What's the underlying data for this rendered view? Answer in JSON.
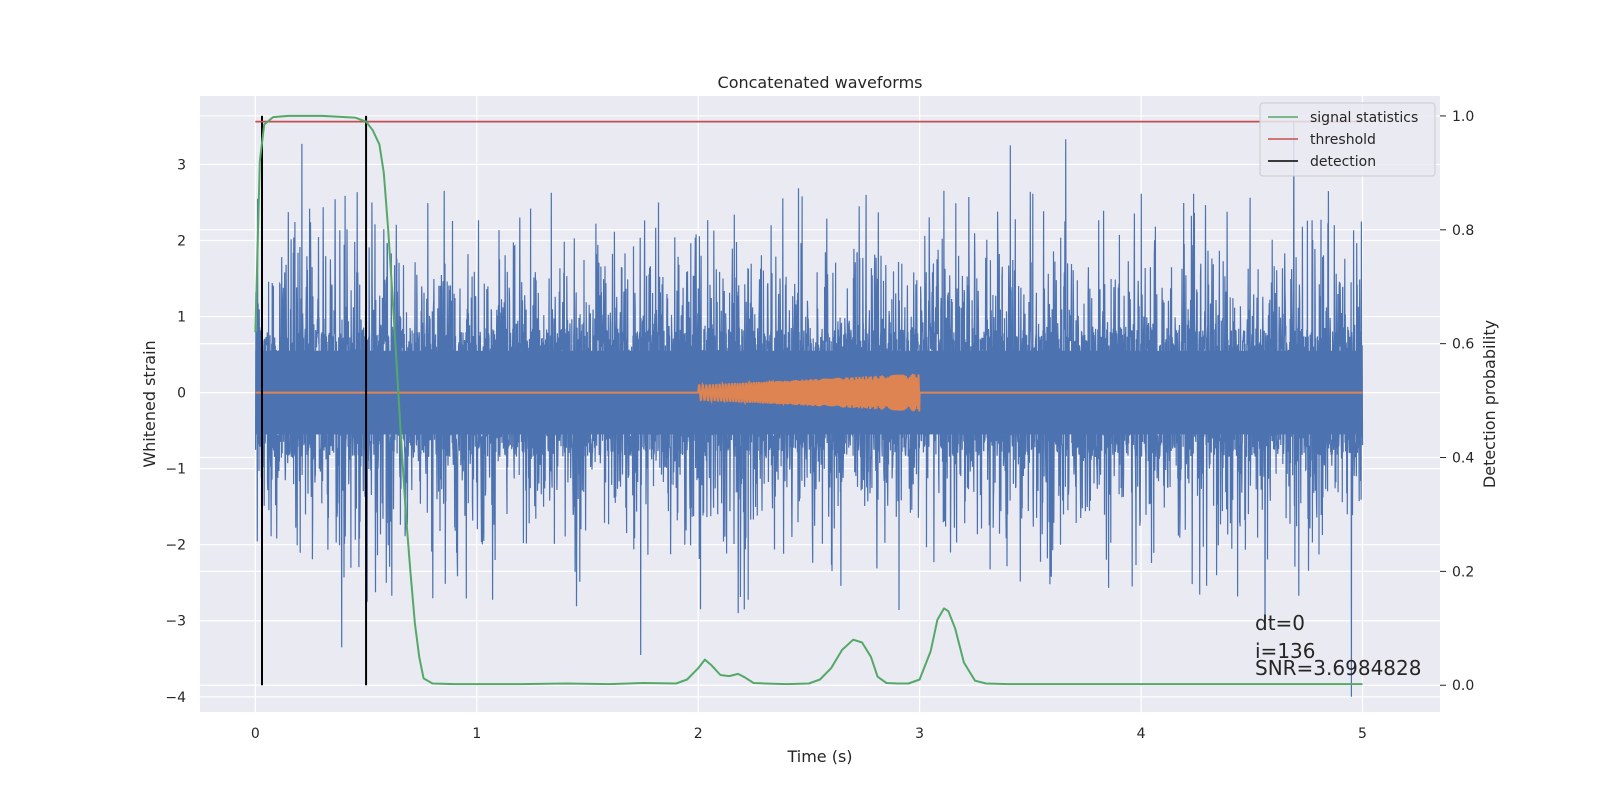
{
  "chart_data": {
    "type": "line",
    "title": "Concatenated waveforms",
    "xlabel": "Time (s)",
    "ylabel": "Whitened strain",
    "y2label": "Detection probability",
    "xlim": [
      -0.25,
      5.35
    ],
    "ylim": [
      -4.2,
      3.9
    ],
    "y2lim": [
      -0.047,
      1.035
    ],
    "x_ticks": [
      0,
      1,
      2,
      3,
      4,
      5
    ],
    "y_ticks": [
      -4,
      -3,
      -2,
      -1,
      0,
      1,
      2,
      3
    ],
    "y2_ticks": [
      0.0,
      0.2,
      0.4,
      0.6,
      0.8,
      1.0
    ],
    "x_tick_labels": [
      "0",
      "1",
      "2",
      "3",
      "4",
      "5"
    ],
    "y_tick_labels": [
      "−4",
      "−3",
      "−2",
      "−1",
      "0",
      "1",
      "2",
      "3"
    ],
    "y2_tick_labels": [
      "0.0",
      "0.2",
      "0.4",
      "0.6",
      "0.8",
      "1.0"
    ],
    "grid": true,
    "legend_position": "top-right",
    "colors": {
      "strain": "#4c72b0",
      "injected": "#dd8452",
      "signal_statistics": "#55a868",
      "threshold": "#c44e52",
      "detection": "#000000",
      "background": "#eaeaf2",
      "grid": "#ffffff"
    },
    "series": [
      {
        "name": "signal statistics",
        "axis": "right",
        "x": [
          0.0,
          0.02,
          0.04,
          0.08,
          0.15,
          0.3,
          0.45,
          0.5,
          0.53,
          0.56,
          0.58,
          0.6,
          0.62,
          0.64,
          0.66,
          0.68,
          0.7,
          0.72,
          0.74,
          0.76,
          0.8,
          0.9,
          1.0,
          1.2,
          1.4,
          1.6,
          1.75,
          1.9,
          1.95,
          2.0,
          2.03,
          2.06,
          2.1,
          2.14,
          2.18,
          2.21,
          2.25,
          2.3,
          2.4,
          2.5,
          2.55,
          2.6,
          2.65,
          2.7,
          2.74,
          2.78,
          2.81,
          2.85,
          2.9,
          2.95,
          3.0,
          3.05,
          3.08,
          3.11,
          3.13,
          3.16,
          3.2,
          3.25,
          3.3,
          3.4,
          3.6,
          3.8,
          4.0,
          4.5,
          5.0
        ],
        "values": [
          0.62,
          0.92,
          0.985,
          0.998,
          1.0,
          1.0,
          0.997,
          0.99,
          0.975,
          0.95,
          0.9,
          0.8,
          0.68,
          0.55,
          0.42,
          0.3,
          0.2,
          0.11,
          0.05,
          0.012,
          0.003,
          0.002,
          0.002,
          0.002,
          0.003,
          0.002,
          0.004,
          0.003,
          0.01,
          0.03,
          0.045,
          0.035,
          0.018,
          0.016,
          0.02,
          0.014,
          0.004,
          0.003,
          0.002,
          0.003,
          0.01,
          0.03,
          0.062,
          0.08,
          0.075,
          0.05,
          0.015,
          0.004,
          0.003,
          0.003,
          0.01,
          0.06,
          0.115,
          0.135,
          0.13,
          0.1,
          0.04,
          0.008,
          0.003,
          0.002,
          0.002,
          0.002,
          0.002,
          0.002,
          0.002
        ]
      },
      {
        "name": "threshold",
        "axis": "right",
        "x": [
          0.0,
          5.0
        ],
        "values": [
          0.99,
          0.99
        ]
      },
      {
        "name": "detection",
        "axis": "right",
        "x_positions": [
          0.03,
          0.5
        ],
        "range": [
          0.0,
          1.0
        ]
      },
      {
        "axis": "left",
        "x_range": [
          0.0,
          5.0
        ],
        "envelope_abs": 0.55,
        "peak_spikes": [
          {
            "x": 0.01,
            "y": 2.55
          },
          {
            "x": 0.21,
            "y": 3.27
          },
          {
            "x": 0.39,
            "y": -3.35
          },
          {
            "x": 0.58,
            "y": 2.15
          },
          {
            "x": 1.74,
            "y": -3.45
          },
          {
            "x": 1.82,
            "y": 2.5
          },
          {
            "x": 2.18,
            "y": -2.9
          },
          {
            "x": 3.41,
            "y": 3.25
          },
          {
            "x": 3.66,
            "y": 3.33
          },
          {
            "x": 3.96,
            "y": -2.55
          },
          {
            "x": 4.56,
            "y": -3.1
          },
          {
            "x": 4.69,
            "y": 3.55
          },
          {
            "x": 4.95,
            "y": -4.0
          }
        ]
      },
      {
        "axis": "left",
        "x": [
          0.0,
          2.0,
          3.0,
          5.0
        ],
        "chirp_start": 2.0,
        "chirp_end": 3.0,
        "amp_start": 0.1,
        "amp_end": 0.25
      }
    ],
    "legend": [
      "signal statistics",
      "threshold",
      "detection"
    ],
    "annotations": [
      "dt=0",
      "i=136",
      "SNR=3.6984828"
    ]
  }
}
